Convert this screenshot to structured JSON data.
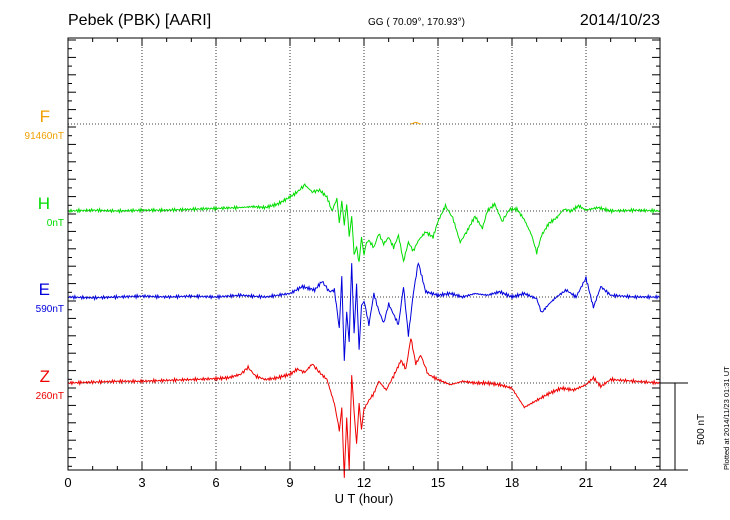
{
  "header": {
    "title": "Pebek (PBK)  [AARI]",
    "coords": "GG ( 70.09°, 170.93°)",
    "date": "2014/10/23"
  },
  "footer": {
    "plotted": "Plotted at 2014/11/23 01:31  UT"
  },
  "chart_data": {
    "type": "line",
    "xlabel": "U T (hour)",
    "xlim": [
      0,
      24
    ],
    "x_ticks": [
      "0",
      "3",
      "6",
      "9",
      "12",
      "15",
      "18",
      "21",
      "24"
    ],
    "scale_bar": {
      "label": "500 nT",
      "value_nT": 500
    },
    "grid": "dotted",
    "colors": {
      "F": "#f0a000",
      "H": "#00dd00",
      "E": "#0000dd",
      "Z": "#ee0000"
    },
    "series": [
      {
        "name": "F",
        "baseline": "91460nT",
        "color": "#f0a000",
        "x": [
          13.9,
          14.1,
          14.3
        ],
        "values": [
          0,
          10,
          0
        ]
      },
      {
        "name": "H",
        "baseline": "0nT",
        "color": "#00dd00",
        "x": [
          0,
          1,
          2,
          3,
          4,
          5,
          6,
          7,
          7.5,
          8,
          8.5,
          9,
          9.3,
          9.6,
          9.9,
          10.2,
          10.5,
          10.7,
          10.9,
          11.0,
          11.1,
          11.2,
          11.3,
          11.4,
          11.5,
          11.6,
          11.7,
          11.8,
          11.9,
          12.0,
          12.1,
          12.2,
          12.4,
          12.6,
          12.8,
          13.0,
          13.2,
          13.4,
          13.6,
          13.8,
          14.0,
          14.2,
          14.5,
          14.8,
          15.0,
          15.3,
          15.6,
          15.9,
          16.2,
          16.5,
          16.8,
          17.0,
          17.3,
          17.6,
          17.9,
          18.2,
          18.5,
          18.8,
          19.0,
          19.2,
          19.5,
          19.8,
          20.1,
          20.4,
          20.7,
          21.0,
          21.5,
          22,
          23,
          24
        ],
        "values": [
          0,
          5,
          0,
          5,
          5,
          10,
          15,
          20,
          25,
          20,
          40,
          80,
          110,
          150,
          110,
          120,
          80,
          0,
          70,
          -60,
          50,
          -80,
          40,
          -150,
          -30,
          -250,
          -200,
          -300,
          -140,
          -260,
          -180,
          -170,
          -210,
          -130,
          -190,
          -150,
          -210,
          -140,
          -290,
          -180,
          -230,
          -170,
          -120,
          -150,
          -60,
          30,
          -40,
          -180,
          -110,
          -30,
          -100,
          0,
          40,
          -60,
          10,
          10,
          -50,
          -140,
          -240,
          -140,
          -70,
          -40,
          10,
          0,
          30,
          5,
          20,
          0,
          5,
          0
        ]
      },
      {
        "name": "E",
        "baseline": "590nT",
        "color": "#0000dd",
        "x": [
          0,
          1,
          2,
          3,
          4,
          5,
          6,
          7,
          8,
          9,
          9.5,
          10,
          10.3,
          10.6,
          10.8,
          11.0,
          11.1,
          11.2,
          11.3,
          11.4,
          11.5,
          11.6,
          11.7,
          11.8,
          11.9,
          12.0,
          12.2,
          12.4,
          12.6,
          12.8,
          13.0,
          13.2,
          13.4,
          13.6,
          13.8,
          14.0,
          14.2,
          14.5,
          15,
          15.5,
          16,
          16.5,
          17,
          17.5,
          18,
          18.5,
          19,
          19.2,
          19.5,
          19.8,
          20.2,
          20.6,
          21.0,
          21.3,
          21.6,
          22,
          23,
          24
        ],
        "values": [
          0,
          -5,
          0,
          5,
          0,
          5,
          0,
          10,
          0,
          20,
          60,
          40,
          90,
          30,
          40,
          -180,
          120,
          -370,
          -80,
          -260,
          190,
          -200,
          70,
          -300,
          -50,
          -20,
          -160,
          20,
          -80,
          -150,
          -40,
          -100,
          -160,
          60,
          -220,
          20,
          200,
          30,
          10,
          20,
          0,
          20,
          10,
          30,
          0,
          20,
          -10,
          -90,
          -40,
          0,
          40,
          0,
          110,
          -60,
          60,
          10,
          0,
          0
        ]
      },
      {
        "name": "Z",
        "baseline": "260nT",
        "color": "#ee0000",
        "x": [
          0,
          1,
          2,
          3,
          4,
          5,
          6,
          6.5,
          7.0,
          7.3,
          7.6,
          8,
          8.5,
          9,
          9.3,
          9.6,
          9.9,
          10.2,
          10.5,
          10.8,
          11.0,
          11.1,
          11.2,
          11.3,
          11.4,
          11.5,
          11.6,
          11.7,
          11.8,
          11.9,
          12.0,
          12.2,
          12.4,
          12.6,
          12.9,
          13.2,
          13.5,
          13.7,
          13.9,
          14.1,
          14.3,
          14.6,
          15,
          15.5,
          16,
          16.5,
          17,
          17.5,
          18,
          18.5,
          19,
          19.5,
          20,
          20.5,
          21,
          21.3,
          21.6,
          22,
          23,
          24
        ],
        "values": [
          0,
          5,
          10,
          10,
          15,
          20,
          25,
          30,
          50,
          90,
          40,
          20,
          30,
          50,
          80,
          60,
          110,
          60,
          20,
          -120,
          -270,
          -150,
          -540,
          -200,
          -500,
          40,
          -160,
          -350,
          -120,
          -260,
          -150,
          -100,
          -60,
          10,
          -40,
          40,
          130,
          80,
          260,
          110,
          160,
          50,
          20,
          -10,
          10,
          0,
          0,
          -10,
          -30,
          -140,
          -100,
          -60,
          -30,
          -40,
          -10,
          30,
          -20,
          20,
          10,
          0
        ]
      }
    ]
  }
}
